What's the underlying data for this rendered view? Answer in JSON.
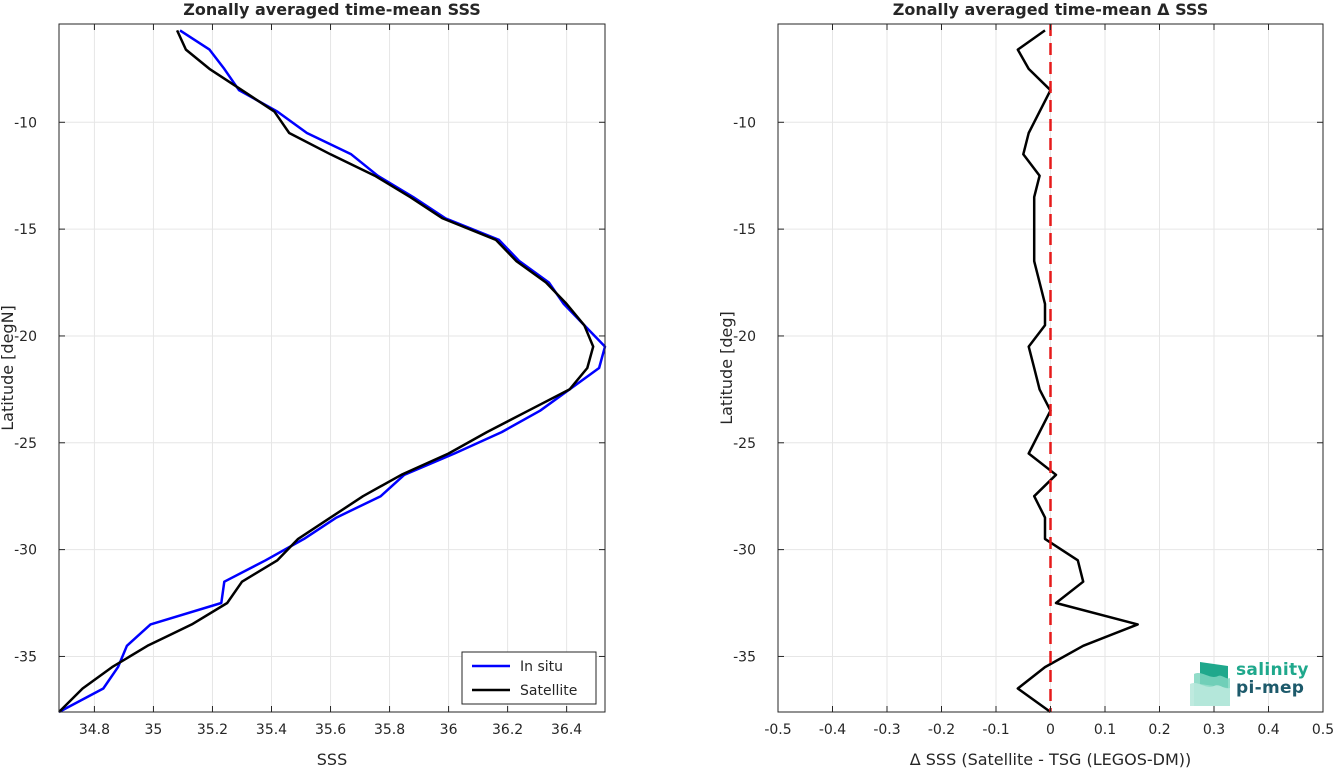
{
  "logo": {
    "line1": "salinity",
    "line2": "pi-mep",
    "colors": [
      "#1fa88c",
      "#1d5a6b"
    ]
  },
  "chart_data": [
    {
      "type": "line",
      "title": "Zonally averaged time-mean SSS",
      "xlabel": "SSS",
      "ylabel": "Latitude [degN]",
      "xlim": [
        34.68,
        36.53
      ],
      "ylim": [
        -37.6,
        -5.4
      ],
      "xticks": [
        34.8,
        35,
        35.2,
        35.4,
        35.6,
        35.8,
        36,
        36.2,
        36.4
      ],
      "xtick_labels": [
        "34.8",
        "35",
        "35.2",
        "35.4",
        "35.6",
        "35.8",
        "36",
        "36.2",
        "36.4"
      ],
      "yticks": [
        -10,
        -15,
        -20,
        -25,
        -30,
        -35
      ],
      "ytick_labels": [
        "-10",
        "-15",
        "-20",
        "-25",
        "-30",
        "-35"
      ],
      "grid": true,
      "legend_position": "bottom-right",
      "series": [
        {
          "name": "In situ",
          "color": "#0000ff",
          "points": [
            [
              35.09,
              -5.7
            ],
            [
              35.19,
              -6.6
            ],
            [
              35.24,
              -7.5
            ],
            [
              35.29,
              -8.5
            ],
            [
              35.42,
              -9.5
            ],
            [
              35.52,
              -10.5
            ],
            [
              35.67,
              -11.5
            ],
            [
              35.76,
              -12.5
            ],
            [
              35.88,
              -13.5
            ],
            [
              35.99,
              -14.5
            ],
            [
              36.17,
              -15.5
            ],
            [
              36.24,
              -16.5
            ],
            [
              36.34,
              -17.5
            ],
            [
              36.39,
              -18.5
            ],
            [
              36.46,
              -19.5
            ],
            [
              36.53,
              -20.5
            ],
            [
              36.51,
              -21.5
            ],
            [
              36.41,
              -22.5
            ],
            [
              36.31,
              -23.5
            ],
            [
              36.18,
              -24.5
            ],
            [
              36.02,
              -25.5
            ],
            [
              35.85,
              -26.5
            ],
            [
              35.77,
              -27.5
            ],
            [
              35.62,
              -28.5
            ],
            [
              35.51,
              -29.5
            ],
            [
              35.38,
              -30.5
            ],
            [
              35.24,
              -31.5
            ],
            [
              35.23,
              -32.5
            ],
            [
              34.99,
              -33.5
            ],
            [
              34.91,
              -34.5
            ],
            [
              34.88,
              -35.5
            ],
            [
              34.83,
              -36.5
            ],
            [
              34.68,
              -37.6
            ]
          ]
        },
        {
          "name": "Satellite",
          "color": "#000000",
          "points": [
            [
              35.08,
              -5.7
            ],
            [
              35.11,
              -6.6
            ],
            [
              35.19,
              -7.5
            ],
            [
              35.3,
              -8.5
            ],
            [
              35.41,
              -9.5
            ],
            [
              35.46,
              -10.5
            ],
            [
              35.6,
              -11.5
            ],
            [
              35.75,
              -12.5
            ],
            [
              35.87,
              -13.5
            ],
            [
              35.98,
              -14.5
            ],
            [
              36.16,
              -15.5
            ],
            [
              36.23,
              -16.5
            ],
            [
              36.33,
              -17.5
            ],
            [
              36.4,
              -18.5
            ],
            [
              36.46,
              -19.5
            ],
            [
              36.49,
              -20.5
            ],
            [
              36.47,
              -21.5
            ],
            [
              36.41,
              -22.5
            ],
            [
              36.27,
              -23.5
            ],
            [
              36.13,
              -24.5
            ],
            [
              36.0,
              -25.5
            ],
            [
              35.84,
              -26.5
            ],
            [
              35.71,
              -27.5
            ],
            [
              35.6,
              -28.5
            ],
            [
              35.49,
              -29.5
            ],
            [
              35.42,
              -30.5
            ],
            [
              35.3,
              -31.5
            ],
            [
              35.25,
              -32.5
            ],
            [
              35.13,
              -33.5
            ],
            [
              34.98,
              -34.5
            ],
            [
              34.86,
              -35.5
            ],
            [
              34.76,
              -36.5
            ],
            [
              34.68,
              -37.6
            ]
          ]
        }
      ]
    },
    {
      "type": "line",
      "title": "Zonally averaged time-mean Δ SSS",
      "xlabel": "Δ SSS (Satellite - TSG (LEGOS-DM))",
      "ylabel": "Latitude [deg]",
      "xlim": [
        -0.5,
        0.5
      ],
      "ylim": [
        -37.6,
        -5.4
      ],
      "xticks": [
        -0.5,
        -0.4,
        -0.3,
        -0.2,
        -0.1,
        0,
        0.1,
        0.2,
        0.3,
        0.4,
        0.5
      ],
      "xtick_labels": [
        "-0.5",
        "-0.4",
        "-0.3",
        "-0.2",
        "-0.1",
        "0",
        "0.1",
        "0.2",
        "0.3",
        "0.4",
        "0.5"
      ],
      "yticks": [
        -10,
        -15,
        -20,
        -25,
        -30,
        -35
      ],
      "ytick_labels": [
        "-10",
        "-15",
        "-20",
        "-25",
        "-30",
        "-35"
      ],
      "grid": true,
      "series": [
        {
          "color": "#000000",
          "points": [
            [
              -0.01,
              -5.7
            ],
            [
              -0.06,
              -6.6
            ],
            [
              -0.04,
              -7.5
            ],
            [
              -0.0,
              -8.5
            ],
            [
              -0.02,
              -9.5
            ],
            [
              -0.04,
              -10.5
            ],
            [
              -0.05,
              -11.5
            ],
            [
              -0.02,
              -12.5
            ],
            [
              -0.03,
              -13.5
            ],
            [
              -0.03,
              -14.5
            ],
            [
              -0.03,
              -15.5
            ],
            [
              -0.03,
              -16.5
            ],
            [
              -0.02,
              -17.5
            ],
            [
              -0.01,
              -18.5
            ],
            [
              -0.01,
              -19.5
            ],
            [
              -0.04,
              -20.5
            ],
            [
              -0.03,
              -21.5
            ],
            [
              -0.02,
              -22.5
            ],
            [
              -0.0,
              -23.5
            ],
            [
              -0.02,
              -24.5
            ],
            [
              -0.04,
              -25.5
            ],
            [
              0.01,
              -26.5
            ],
            [
              -0.03,
              -27.5
            ],
            [
              -0.01,
              -28.5
            ],
            [
              -0.01,
              -29.5
            ],
            [
              0.05,
              -30.5
            ],
            [
              0.06,
              -31.5
            ],
            [
              0.01,
              -32.5
            ],
            [
              0.16,
              -33.5
            ],
            [
              0.06,
              -34.5
            ],
            [
              -0.01,
              -35.5
            ],
            [
              -0.06,
              -36.5
            ],
            [
              -0.0,
              -37.6
            ]
          ]
        },
        {
          "color": "#e61a1a",
          "style": "dashed",
          "points": [
            [
              0,
              -5.4
            ],
            [
              0,
              -37.6
            ]
          ]
        }
      ]
    }
  ]
}
